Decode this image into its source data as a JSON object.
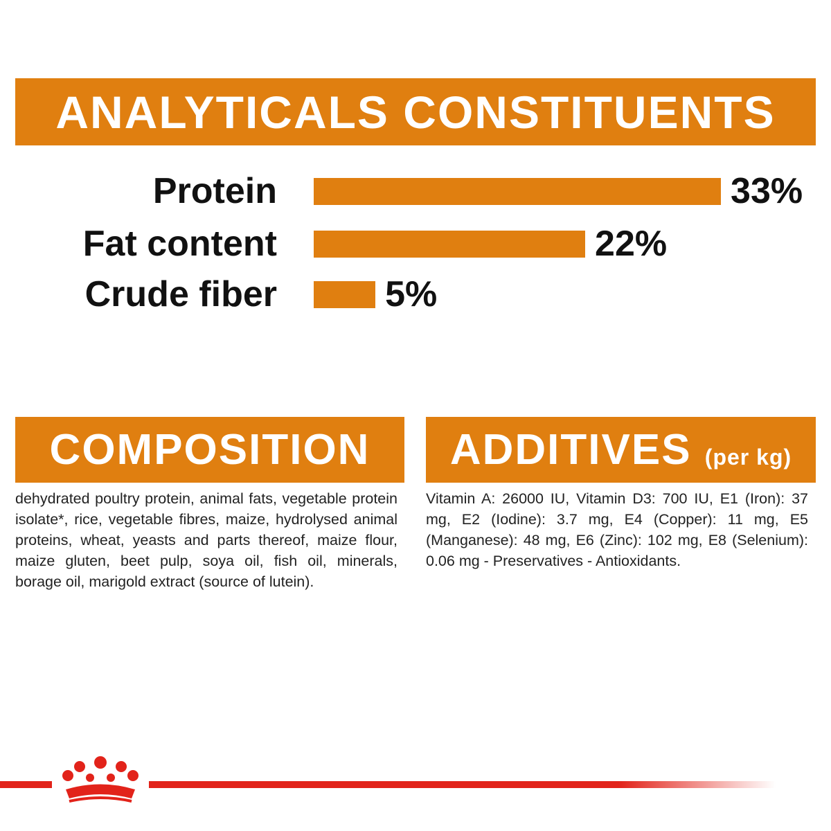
{
  "chart_data": {
    "type": "bar",
    "title": "ANALYTICALS CONSTITUENTS",
    "categories": [
      "Protein",
      "Fat content",
      "Crude fiber"
    ],
    "values": [
      33,
      22,
      5
    ],
    "value_labels": [
      "33%",
      "22%",
      "5%"
    ],
    "color": "#e07f10"
  },
  "composition": {
    "title": "COMPOSITION",
    "text": "dehydrated poultry protein, animal fats, vegetable protein isolate*, rice, vegetable fibres, maize, hydrolysed animal proteins, wheat, yeasts and parts thereof, maize flour, maize gluten, beet pulp, soya oil, fish oil, minerals, borage oil, marigold extract (source of lutein)."
  },
  "additives": {
    "title": "ADDITIVES",
    "unit": "(per kg)",
    "text": "Vitamin A: 26000 IU, Vitamin D3: 700 IU, E1 (Iron): 37 mg, E2 (Iodine): 3.7 mg, E4 (Copper): 11 mg, E5 (Manganese): 48 mg, E6 (Zinc): 102 mg, E8 (Selenium): 0.06 mg - Preservatives - Antioxidants."
  }
}
